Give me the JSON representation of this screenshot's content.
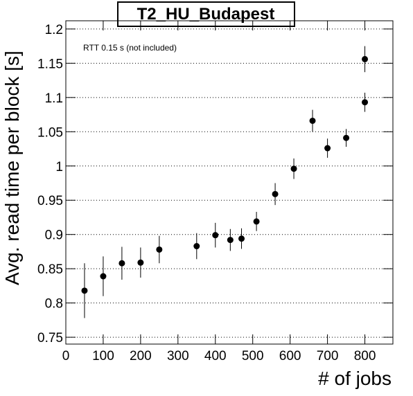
{
  "chart_data": {
    "type": "scatter",
    "title": "T2_HU_Budapest",
    "annotation": "RTT 0.15 s (not included)",
    "x_label": "# of jobs",
    "y_label": "Avg. read time per block [s]",
    "grid": true,
    "xlim": [
      0,
      875
    ],
    "ylim": [
      0.74,
      1.212
    ],
    "xticks": [
      0,
      100,
      200,
      300,
      400,
      500,
      600,
      700,
      800
    ],
    "yticks": [
      0.75,
      0.8,
      0.85,
      0.9,
      0.95,
      1,
      1.05,
      1.1,
      1.15,
      1.2
    ],
    "series": [
      {
        "color": "#000000",
        "x": [
          50,
          100,
          150,
          200,
          250,
          350,
          400,
          440,
          470,
          510,
          560,
          610,
          660,
          700,
          750,
          800,
          800
        ],
        "values": [
          0.818,
          0.839,
          0.858,
          0.859,
          0.878,
          0.883,
          0.899,
          0.892,
          0.894,
          0.919,
          0.959,
          0.996,
          1.066,
          1.026,
          1.041,
          1.093,
          1.156
        ],
        "errors": [
          0.04,
          0.029,
          0.024,
          0.022,
          0.02,
          0.019,
          0.018,
          0.016,
          0.015,
          0.014,
          0.016,
          0.015,
          0.016,
          0.014,
          0.013,
          0.014,
          0.019
        ]
      }
    ]
  }
}
